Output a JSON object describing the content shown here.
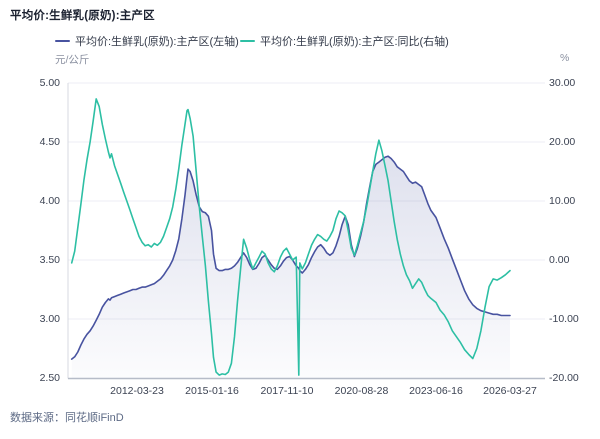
{
  "title": "平均价:生鲜乳(原奶):主产区",
  "legend": [
    {
      "label": "平均价:生鲜乳(原奶):主产区(左轴)",
      "color": "#4853a0"
    },
    {
      "label": "平均价:生鲜乳(原奶):主产区:同比(右轴)",
      "color": "#2dbfa4"
    }
  ],
  "footer": {
    "source": "数据来源：同花顺iFinD"
  },
  "colors": {
    "price_line": "#4853a0",
    "yoy_line": "#2dbfa4",
    "grid": "#edeef4",
    "axis_line": "#b6bcc8",
    "area_top": "rgba(76,88,160,0.18)",
    "area_bottom": "rgba(76,88,160,0.02)"
  },
  "chart_data": {
    "type": "line",
    "title": "平均价:生鲜乳(原奶):主产区",
    "left_axis": {
      "unit": "元/公斤",
      "min": 2.5,
      "max": 5.0,
      "ticks": [
        "5.00",
        "4.50",
        "4.00",
        "3.50",
        "3.00",
        "2.50"
      ]
    },
    "right_axis": {
      "unit": "%",
      "min": -20,
      "max": 30,
      "ticks": [
        "30.00",
        "20.00",
        "10.00",
        "0.00",
        "-10.00",
        "-20.00"
      ]
    },
    "x_ticks": [
      "2012-03-23",
      "2015-01-16",
      "2017-11-10",
      "2020-08-28",
      "2023-06-16",
      "2026-03-27"
    ],
    "legend_position": "top",
    "grid": true,
    "series": [
      {
        "name": "平均价:生鲜乳(原奶):主产区(左轴)",
        "axis": "left",
        "color": "#4853a0",
        "area": true
      },
      {
        "name": "平均价:生鲜乳(原奶):主产区:同比(右轴)",
        "axis": "right",
        "color": "#2dbfa4",
        "area": false
      }
    ],
    "points_format": [
      "date",
      "price_left_axis",
      "yoy_right_axis"
    ],
    "points": [
      [
        "2009-10-09",
        2.66,
        -0.5
      ],
      [
        "2009-11-20",
        2.68,
        1.5
      ],
      [
        "2010-01-01",
        2.72,
        5.5
      ],
      [
        "2010-02-12",
        2.78,
        9.5
      ],
      [
        "2010-03-26",
        2.83,
        13.5
      ],
      [
        "2010-05-07",
        2.87,
        17.0
      ],
      [
        "2010-06-18",
        2.9,
        20.0
      ],
      [
        "2010-07-30",
        2.94,
        23.5
      ],
      [
        "2010-09-10",
        2.99,
        27.3
      ],
      [
        "2010-10-22",
        3.04,
        26.0
      ],
      [
        "2010-12-03",
        3.1,
        23.0
      ],
      [
        "2011-01-14",
        3.14,
        20.5
      ],
      [
        "2011-02-25",
        3.17,
        18.3
      ],
      [
        "2011-03-18",
        3.16,
        17.3
      ],
      [
        "2011-04-08",
        3.18,
        18.0
      ],
      [
        "2011-05-20",
        3.19,
        16.0
      ],
      [
        "2011-07-01",
        3.2,
        14.5
      ],
      [
        "2011-08-12",
        3.21,
        13.0
      ],
      [
        "2011-09-23",
        3.22,
        11.5
      ],
      [
        "2011-11-04",
        3.23,
        10.0
      ],
      [
        "2011-12-16",
        3.24,
        8.5
      ],
      [
        "2012-01-27",
        3.25,
        7.0
      ],
      [
        "2012-03-09",
        3.25,
        5.5
      ],
      [
        "2012-04-20",
        3.26,
        4.0
      ],
      [
        "2012-06-01",
        3.27,
        3.0
      ],
      [
        "2012-07-13",
        3.27,
        2.4
      ],
      [
        "2012-08-24",
        3.28,
        2.6
      ],
      [
        "2012-10-05",
        3.29,
        2.2
      ],
      [
        "2012-11-16",
        3.3,
        2.8
      ],
      [
        "2012-12-28",
        3.32,
        2.5
      ],
      [
        "2013-02-08",
        3.34,
        3.0
      ],
      [
        "2013-03-22",
        3.37,
        4.0
      ],
      [
        "2013-05-03",
        3.41,
        5.5
      ],
      [
        "2013-06-14",
        3.45,
        7.0
      ],
      [
        "2013-07-26",
        3.5,
        9.0
      ],
      [
        "2013-09-06",
        3.58,
        12.0
      ],
      [
        "2013-10-18",
        3.68,
        15.5
      ],
      [
        "2013-11-29",
        3.85,
        19.5
      ],
      [
        "2014-01-10",
        4.05,
        23.0
      ],
      [
        "2014-02-07",
        4.2,
        25.3
      ],
      [
        "2014-02-21",
        4.27,
        25.5
      ],
      [
        "2014-03-21",
        4.25,
        24.0
      ],
      [
        "2014-05-02",
        4.17,
        21.0
      ],
      [
        "2014-06-13",
        4.05,
        15.0
      ],
      [
        "2014-07-25",
        3.95,
        9.0
      ],
      [
        "2014-09-05",
        3.91,
        4.0
      ],
      [
        "2014-10-17",
        3.9,
        -1.0
      ],
      [
        "2014-11-28",
        3.87,
        -7.0
      ],
      [
        "2015-01-09",
        3.75,
        -12.5
      ],
      [
        "2015-02-06",
        3.55,
        -16.5
      ],
      [
        "2015-03-13",
        3.43,
        -19.0
      ],
      [
        "2015-04-24",
        3.41,
        -19.5
      ],
      [
        "2015-06-05",
        3.41,
        -19.3
      ],
      [
        "2015-07-17",
        3.42,
        -19.4
      ],
      [
        "2015-08-28",
        3.42,
        -19.0
      ],
      [
        "2015-10-09",
        3.43,
        -17.5
      ],
      [
        "2015-11-20",
        3.45,
        -13.0
      ],
      [
        "2016-01-01",
        3.48,
        -7.0
      ],
      [
        "2016-02-12",
        3.52,
        -1.5
      ],
      [
        "2016-03-25",
        3.56,
        3.5
      ],
      [
        "2016-05-06",
        3.52,
        2.0
      ],
      [
        "2016-06-17",
        3.46,
        0.0
      ],
      [
        "2016-07-29",
        3.42,
        -1.5
      ],
      [
        "2016-09-09",
        3.43,
        -0.5
      ],
      [
        "2016-10-21",
        3.47,
        0.5
      ],
      [
        "2016-12-02",
        3.52,
        1.5
      ],
      [
        "2017-01-13",
        3.54,
        1.0
      ],
      [
        "2017-02-24",
        3.5,
        -0.5
      ],
      [
        "2017-04-07",
        3.46,
        -1.5
      ],
      [
        "2017-05-19",
        3.43,
        -2.0
      ],
      [
        "2017-06-30",
        3.42,
        -1.0
      ],
      [
        "2017-08-11",
        3.45,
        0.5
      ],
      [
        "2017-09-22",
        3.49,
        1.5
      ],
      [
        "2017-11-03",
        3.52,
        2.0
      ],
      [
        "2017-12-15",
        3.53,
        1.0
      ],
      [
        "2018-01-26",
        3.5,
        0.0
      ],
      [
        "2018-03-16",
        3.45,
        0.5
      ],
      [
        "2018-04-20",
        3.43,
        -19.5
      ],
      [
        "2018-05-04",
        3.41,
        -0.5
      ],
      [
        "2018-06-08",
        3.39,
        -1.5
      ],
      [
        "2018-07-20",
        3.42,
        -0.5
      ],
      [
        "2018-08-31",
        3.46,
        1.0
      ],
      [
        "2018-10-12",
        3.52,
        2.5
      ],
      [
        "2018-11-23",
        3.57,
        3.5
      ],
      [
        "2019-01-04",
        3.61,
        4.3
      ],
      [
        "2019-02-15",
        3.63,
        4.0
      ],
      [
        "2019-03-29",
        3.6,
        3.5
      ],
      [
        "2019-05-10",
        3.56,
        3.2
      ],
      [
        "2019-06-21",
        3.54,
        4.0
      ],
      [
        "2019-08-02",
        3.56,
        5.0
      ],
      [
        "2019-09-13",
        3.62,
        7.0
      ],
      [
        "2019-10-25",
        3.7,
        8.3
      ],
      [
        "2019-12-06",
        3.8,
        8.0
      ],
      [
        "2020-01-17",
        3.87,
        7.5
      ],
      [
        "2020-02-28",
        3.8,
        5.0
      ],
      [
        "2020-04-10",
        3.63,
        2.0
      ],
      [
        "2020-05-22",
        3.53,
        0.8
      ],
      [
        "2020-07-03",
        3.6,
        2.5
      ],
      [
        "2020-08-14",
        3.7,
        4.5
      ],
      [
        "2020-09-25",
        3.82,
        6.5
      ],
      [
        "2020-11-06",
        3.98,
        9.0
      ],
      [
        "2020-12-18",
        4.12,
        12.0
      ],
      [
        "2021-01-29",
        4.25,
        15.0
      ],
      [
        "2021-03-12",
        4.31,
        18.0
      ],
      [
        "2021-04-23",
        4.33,
        20.3
      ],
      [
        "2021-06-04",
        4.35,
        18.5
      ],
      [
        "2021-07-16",
        4.37,
        16.0
      ],
      [
        "2021-08-27",
        4.38,
        13.5
      ],
      [
        "2021-10-08",
        4.36,
        10.0
      ],
      [
        "2021-11-19",
        4.33,
        6.5
      ],
      [
        "2021-12-31",
        4.29,
        3.5
      ],
      [
        "2022-02-11",
        4.27,
        1.0
      ],
      [
        "2022-03-25",
        4.25,
        -1.0
      ],
      [
        "2022-05-06",
        4.21,
        -2.5
      ],
      [
        "2022-06-17",
        4.17,
        -3.5
      ],
      [
        "2022-07-29",
        4.15,
        -4.8
      ],
      [
        "2022-09-09",
        4.16,
        -4.0
      ],
      [
        "2022-10-21",
        4.14,
        -3.2
      ],
      [
        "2022-12-02",
        4.12,
        -3.8
      ],
      [
        "2023-01-13",
        4.05,
        -5.0
      ],
      [
        "2023-02-24",
        3.98,
        -6.0
      ],
      [
        "2023-04-07",
        3.92,
        -6.5
      ],
      [
        "2023-06-16",
        3.86,
        -7.2
      ],
      [
        "2023-08-11",
        3.77,
        -8.5
      ],
      [
        "2023-10-06",
        3.68,
        -9.3
      ],
      [
        "2023-12-01",
        3.6,
        -10.5
      ],
      [
        "2024-01-26",
        3.51,
        -12.0
      ],
      [
        "2024-03-22",
        3.42,
        -13.0
      ],
      [
        "2024-05-17",
        3.33,
        -14.0
      ],
      [
        "2024-07-12",
        3.24,
        -15.2
      ],
      [
        "2024-09-06",
        3.17,
        -16.0
      ],
      [
        "2024-11-01",
        3.12,
        -16.7
      ],
      [
        "2024-12-27",
        3.09,
        -15.0
      ],
      [
        "2025-02-21",
        3.07,
        -12.0
      ],
      [
        "2025-04-18",
        3.06,
        -8.0
      ],
      [
        "2025-06-13",
        3.05,
        -4.5
      ],
      [
        "2025-08-08",
        3.04,
        -3.2
      ],
      [
        "2025-10-03",
        3.04,
        -3.4
      ],
      [
        "2025-11-28",
        3.03,
        -3.0
      ],
      [
        "2026-01-23",
        3.03,
        -2.5
      ],
      [
        "2026-03-27",
        3.03,
        -1.8
      ]
    ]
  }
}
